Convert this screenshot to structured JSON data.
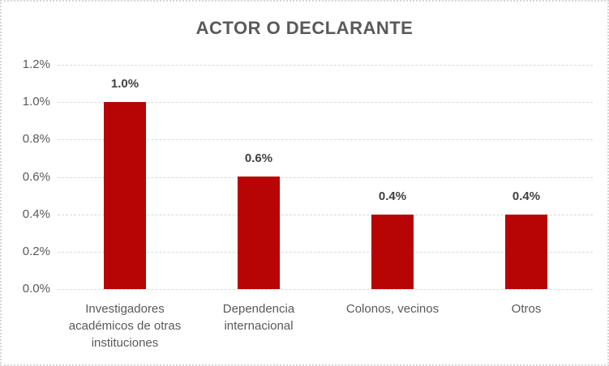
{
  "chart_data": {
    "type": "bar",
    "title": "ACTOR O DECLARANTE",
    "categories": [
      "Investigadores académicos de otras instituciones",
      "Dependencia internacional",
      "Colonos, vecinos",
      "Otros"
    ],
    "values": [
      1.0,
      0.6,
      0.4,
      0.4
    ],
    "data_labels": [
      "1.0%",
      "0.6%",
      "0.4%",
      "0.4%"
    ],
    "y_ticks": [
      "0.0%",
      "0.2%",
      "0.4%",
      "0.6%",
      "0.8%",
      "1.0%",
      "1.2%"
    ],
    "ylim": [
      0,
      1.2
    ],
    "y_step": 0.2,
    "xlabel": "",
    "ylabel": "",
    "legend": "none",
    "grid": "horizontal-dashed",
    "colors": {
      "bar": "#b70404",
      "title": "#595959",
      "tick_label": "#595959",
      "data_label": "#404040",
      "gridline": "#d9d9d9",
      "frame_border": "#d6d6d6",
      "background": "#ffffff"
    }
  }
}
